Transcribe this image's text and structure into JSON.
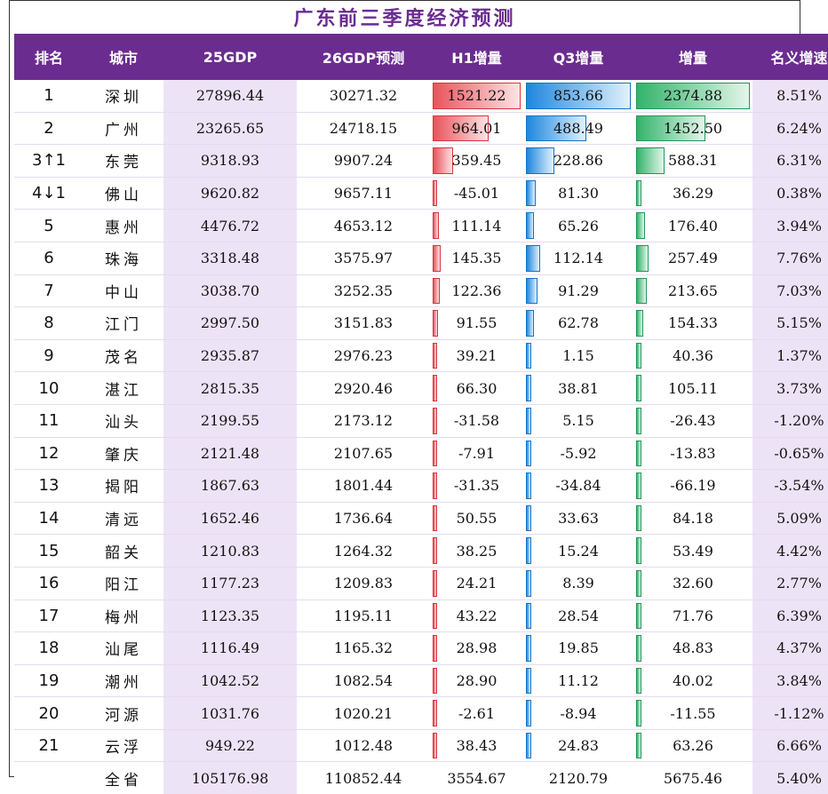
{
  "title": "广东前三季度经济预测",
  "headers": [
    "排名",
    "城市",
    "25GDP",
    "26GDP预测",
    "H1增量",
    "Q3增量",
    "增量",
    "名义增速"
  ],
  "colors": {
    "header_bg": "#6b2c8f",
    "title": "#6a2c91",
    "h1_bar": "#e8545c",
    "q3_bar": "#1f87de",
    "total_bar": "#33b36a"
  },
  "rows": [
    {
      "rank": "1",
      "city": "深圳",
      "gdp25": "27896.44",
      "gdp26": "30271.32",
      "h1": "1521.22",
      "q3": "853.66",
      "inc": "2374.88",
      "growth": "8.51%"
    },
    {
      "rank": "2",
      "city": "广州",
      "gdp25": "23265.65",
      "gdp26": "24718.15",
      "h1": "964.01",
      "q3": "488.49",
      "inc": "1452.50",
      "growth": "6.24%"
    },
    {
      "rank": "3↑1",
      "city": "东莞",
      "gdp25": "9318.93",
      "gdp26": "9907.24",
      "h1": "359.45",
      "q3": "228.86",
      "inc": "588.31",
      "growth": "6.31%"
    },
    {
      "rank": "4↓1",
      "city": "佛山",
      "gdp25": "9620.82",
      "gdp26": "9657.11",
      "h1": "-45.01",
      "q3": "81.30",
      "inc": "36.29",
      "growth": "0.38%"
    },
    {
      "rank": "5",
      "city": "惠州",
      "gdp25": "4476.72",
      "gdp26": "4653.12",
      "h1": "111.14",
      "q3": "65.26",
      "inc": "176.40",
      "growth": "3.94%"
    },
    {
      "rank": "6",
      "city": "珠海",
      "gdp25": "3318.48",
      "gdp26": "3575.97",
      "h1": "145.35",
      "q3": "112.14",
      "inc": "257.49",
      "growth": "7.76%"
    },
    {
      "rank": "7",
      "city": "中山",
      "gdp25": "3038.70",
      "gdp26": "3252.35",
      "h1": "122.36",
      "q3": "91.29",
      "inc": "213.65",
      "growth": "7.03%"
    },
    {
      "rank": "8",
      "city": "江门",
      "gdp25": "2997.50",
      "gdp26": "3151.83",
      "h1": "91.55",
      "q3": "62.78",
      "inc": "154.33",
      "growth": "5.15%"
    },
    {
      "rank": "9",
      "city": "茂名",
      "gdp25": "2935.87",
      "gdp26": "2976.23",
      "h1": "39.21",
      "q3": "1.15",
      "inc": "40.36",
      "growth": "1.37%"
    },
    {
      "rank": "10",
      "city": "湛江",
      "gdp25": "2815.35",
      "gdp26": "2920.46",
      "h1": "66.30",
      "q3": "38.81",
      "inc": "105.11",
      "growth": "3.73%"
    },
    {
      "rank": "11",
      "city": "汕头",
      "gdp25": "2199.55",
      "gdp26": "2173.12",
      "h1": "-31.58",
      "q3": "5.15",
      "inc": "-26.43",
      "growth": "-1.20%"
    },
    {
      "rank": "12",
      "city": "肇庆",
      "gdp25": "2121.48",
      "gdp26": "2107.65",
      "h1": "-7.91",
      "q3": "-5.92",
      "inc": "-13.83",
      "growth": "-0.65%"
    },
    {
      "rank": "13",
      "city": "揭阳",
      "gdp25": "1867.63",
      "gdp26": "1801.44",
      "h1": "-31.35",
      "q3": "-34.84",
      "inc": "-66.19",
      "growth": "-3.54%"
    },
    {
      "rank": "14",
      "city": "清远",
      "gdp25": "1652.46",
      "gdp26": "1736.64",
      "h1": "50.55",
      "q3": "33.63",
      "inc": "84.18",
      "growth": "5.09%"
    },
    {
      "rank": "15",
      "city": "韶关",
      "gdp25": "1210.83",
      "gdp26": "1264.32",
      "h1": "38.25",
      "q3": "15.24",
      "inc": "53.49",
      "growth": "4.42%"
    },
    {
      "rank": "16",
      "city": "阳江",
      "gdp25": "1177.23",
      "gdp26": "1209.83",
      "h1": "24.21",
      "q3": "8.39",
      "inc": "32.60",
      "growth": "2.77%"
    },
    {
      "rank": "17",
      "city": "梅州",
      "gdp25": "1123.35",
      "gdp26": "1195.11",
      "h1": "43.22",
      "q3": "28.54",
      "inc": "71.76",
      "growth": "6.39%"
    },
    {
      "rank": "18",
      "city": "汕尾",
      "gdp25": "1116.49",
      "gdp26": "1165.32",
      "h1": "28.98",
      "q3": "19.85",
      "inc": "48.83",
      "growth": "4.37%"
    },
    {
      "rank": "19",
      "city": "潮州",
      "gdp25": "1042.52",
      "gdp26": "1082.54",
      "h1": "28.90",
      "q3": "11.12",
      "inc": "40.02",
      "growth": "3.84%"
    },
    {
      "rank": "20",
      "city": "河源",
      "gdp25": "1031.76",
      "gdp26": "1020.21",
      "h1": "-2.61",
      "q3": "-8.94",
      "inc": "-11.55",
      "growth": "-1.12%"
    },
    {
      "rank": "21",
      "city": "云浮",
      "gdp25": "949.22",
      "gdp26": "1012.48",
      "h1": "38.43",
      "q3": "24.83",
      "inc": "63.26",
      "growth": "6.66%"
    }
  ],
  "total": {
    "rank": "",
    "city": "全省",
    "gdp25": "105176.98",
    "gdp26": "110852.44",
    "h1": "3554.67",
    "q3": "2120.79",
    "inc": "5675.46",
    "growth": "5.40%"
  }
}
